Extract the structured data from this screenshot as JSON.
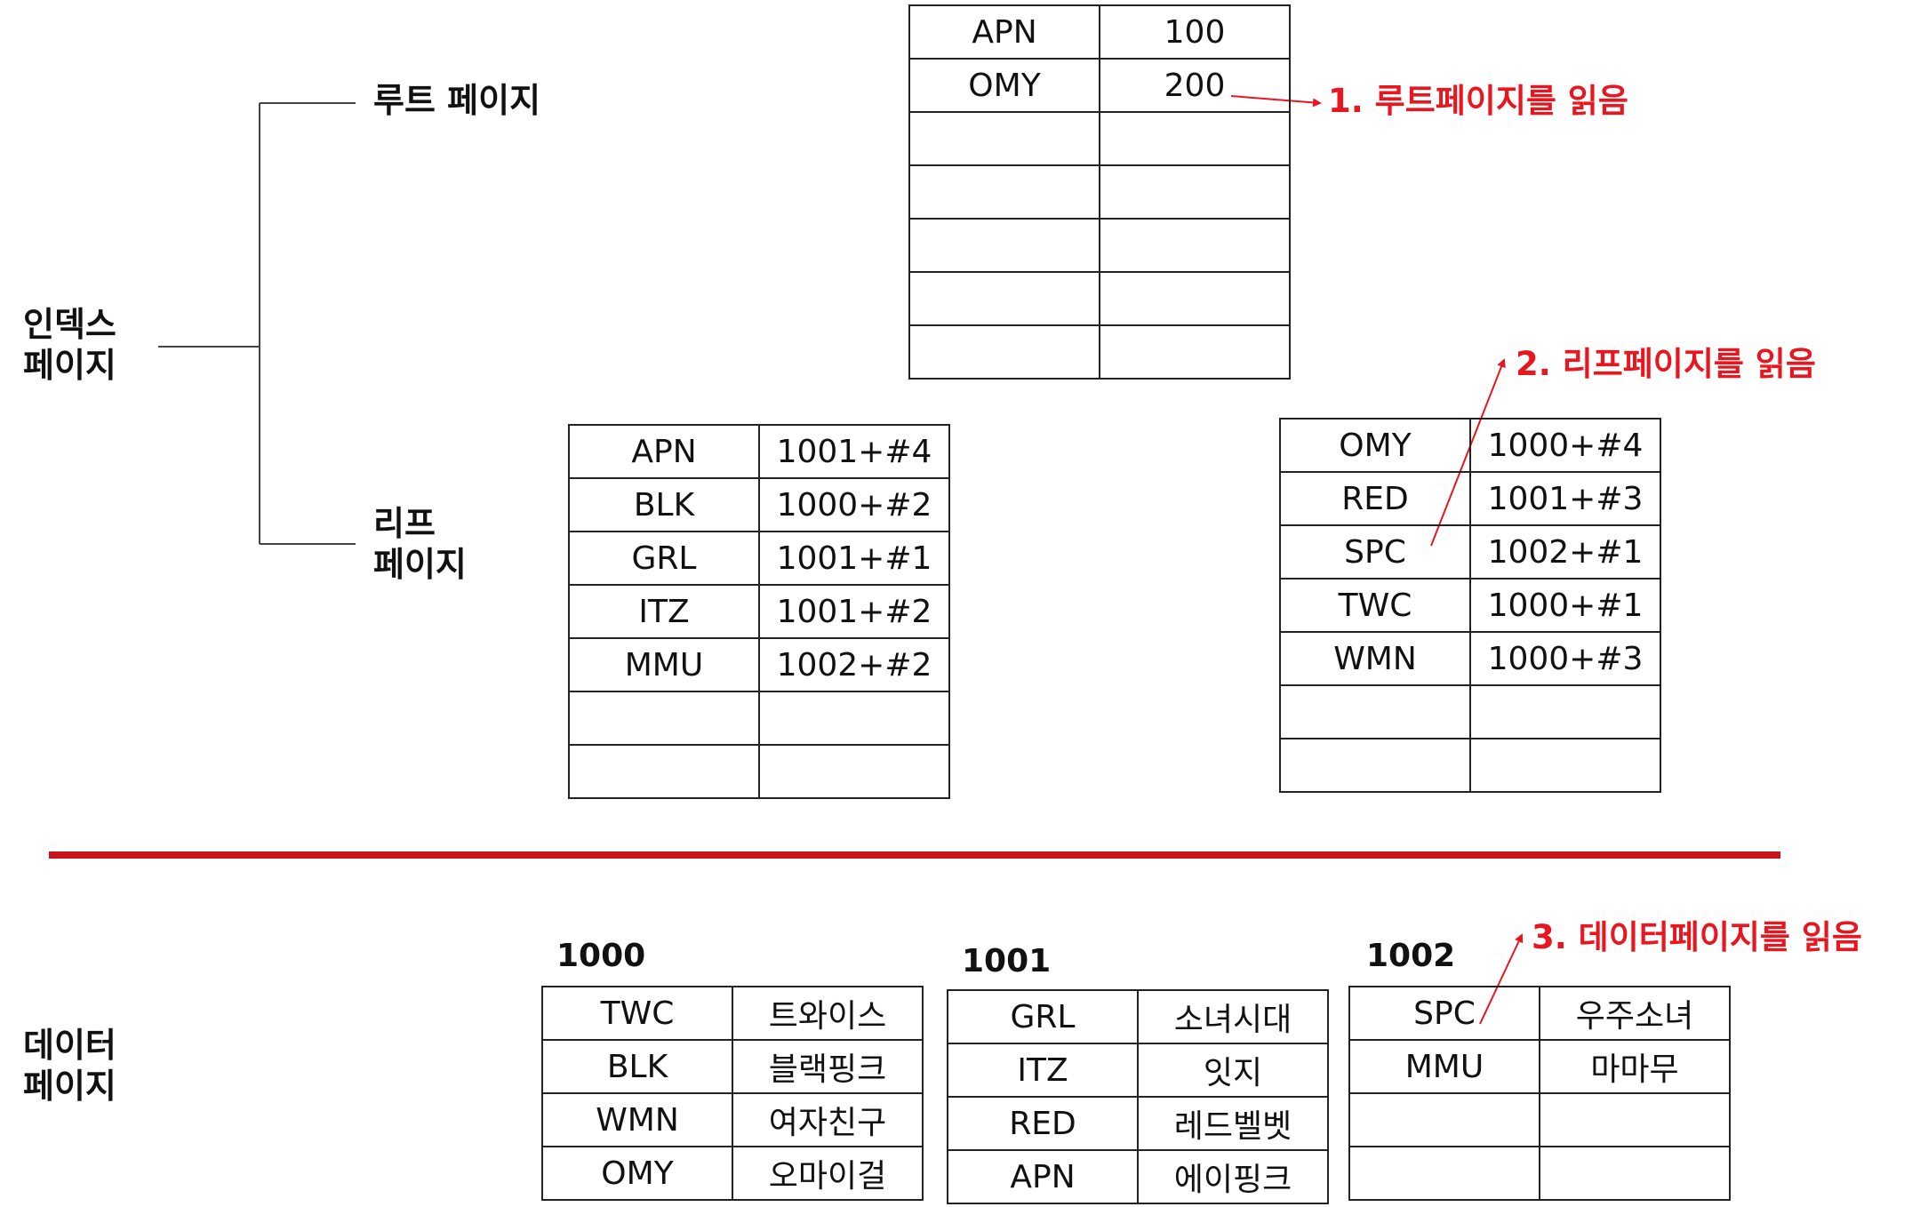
{
  "labels": {
    "index_pages": [
      "인덱스",
      "페이지"
    ],
    "root_page": "루트 페이지",
    "leaf_pages": [
      "리프",
      "페이지"
    ],
    "data_pages": [
      "데이터",
      "페이지"
    ]
  },
  "annotations": {
    "step1": "1. 루트페이지를 읽음",
    "step2": "2. 리프페이지를 읽음",
    "step3": "3. 데이터페이지를 읽음"
  },
  "colors": {
    "accent": "#e8171f",
    "line": "#222222"
  },
  "root_table": {
    "rows": [
      [
        "APN",
        "100"
      ],
      [
        "OMY",
        "200"
      ],
      [
        "",
        ""
      ],
      [
        "",
        ""
      ],
      [
        "",
        ""
      ],
      [
        "",
        ""
      ],
      [
        "",
        ""
      ]
    ]
  },
  "leaf_table_1": {
    "rows": [
      [
        "APN",
        "1001+#4"
      ],
      [
        "BLK",
        "1000+#2"
      ],
      [
        "GRL",
        "1001+#1"
      ],
      [
        "ITZ",
        "1001+#2"
      ],
      [
        "MMU",
        "1002+#2"
      ],
      [
        "",
        ""
      ],
      [
        "",
        ""
      ]
    ]
  },
  "leaf_table_2": {
    "rows": [
      [
        "OMY",
        "1000+#4"
      ],
      [
        "RED",
        "1001+#3"
      ],
      [
        "SPC",
        "1002+#1"
      ],
      [
        "TWC",
        "1000+#1"
      ],
      [
        "WMN",
        "1000+#3"
      ],
      [
        "",
        ""
      ],
      [
        "",
        ""
      ]
    ]
  },
  "data_pages": [
    {
      "page": "1000",
      "rows": [
        [
          "TWC",
          "트와이스"
        ],
        [
          "BLK",
          "블랙핑크"
        ],
        [
          "WMN",
          "여자친구"
        ],
        [
          "OMY",
          "오마이걸"
        ]
      ]
    },
    {
      "page": "1001",
      "rows": [
        [
          "GRL",
          "소녀시대"
        ],
        [
          "ITZ",
          "잇지"
        ],
        [
          "RED",
          "레드벨벳"
        ],
        [
          "APN",
          "에이핑크"
        ]
      ]
    },
    {
      "page": "1002",
      "rows": [
        [
          "SPC",
          "우주소녀"
        ],
        [
          "MMU",
          "마마무"
        ],
        [
          "",
          ""
        ],
        [
          "",
          ""
        ]
      ]
    }
  ]
}
